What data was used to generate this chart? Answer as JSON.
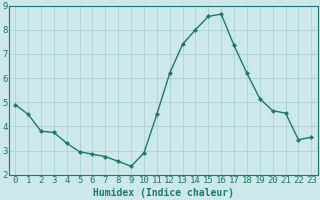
{
  "x": [
    0,
    1,
    2,
    3,
    4,
    5,
    6,
    7,
    8,
    9,
    10,
    11,
    12,
    13,
    14,
    15,
    16,
    17,
    18,
    19,
    20,
    21,
    22,
    23
  ],
  "y": [
    4.9,
    4.5,
    3.8,
    3.75,
    3.3,
    2.95,
    2.85,
    2.75,
    2.55,
    2.35,
    2.9,
    4.5,
    6.2,
    7.4,
    8.0,
    8.55,
    8.65,
    7.35,
    6.2,
    5.15,
    4.65,
    4.55,
    3.45,
    3.55
  ],
  "line_color": "#1a7a6e",
  "marker": "D",
  "marker_size": 2,
  "bg_color": "#cce8e8",
  "grid_color": "#aacece",
  "xlabel": "Humidex (Indice chaleur)",
  "ylim": [
    2,
    9
  ],
  "xlim": [
    -0.5,
    23.5
  ],
  "yticks": [
    2,
    3,
    4,
    5,
    6,
    7,
    8,
    9
  ],
  "xticks": [
    0,
    1,
    2,
    3,
    4,
    5,
    6,
    7,
    8,
    9,
    10,
    11,
    12,
    13,
    14,
    15,
    16,
    17,
    18,
    19,
    20,
    21,
    22,
    23
  ],
  "tick_color": "#1a7a6e",
  "label_color": "#1a7a6e",
  "spine_color": "#1a7a6e",
  "xlabel_fontsize": 7,
  "tick_fontsize": 6.5
}
